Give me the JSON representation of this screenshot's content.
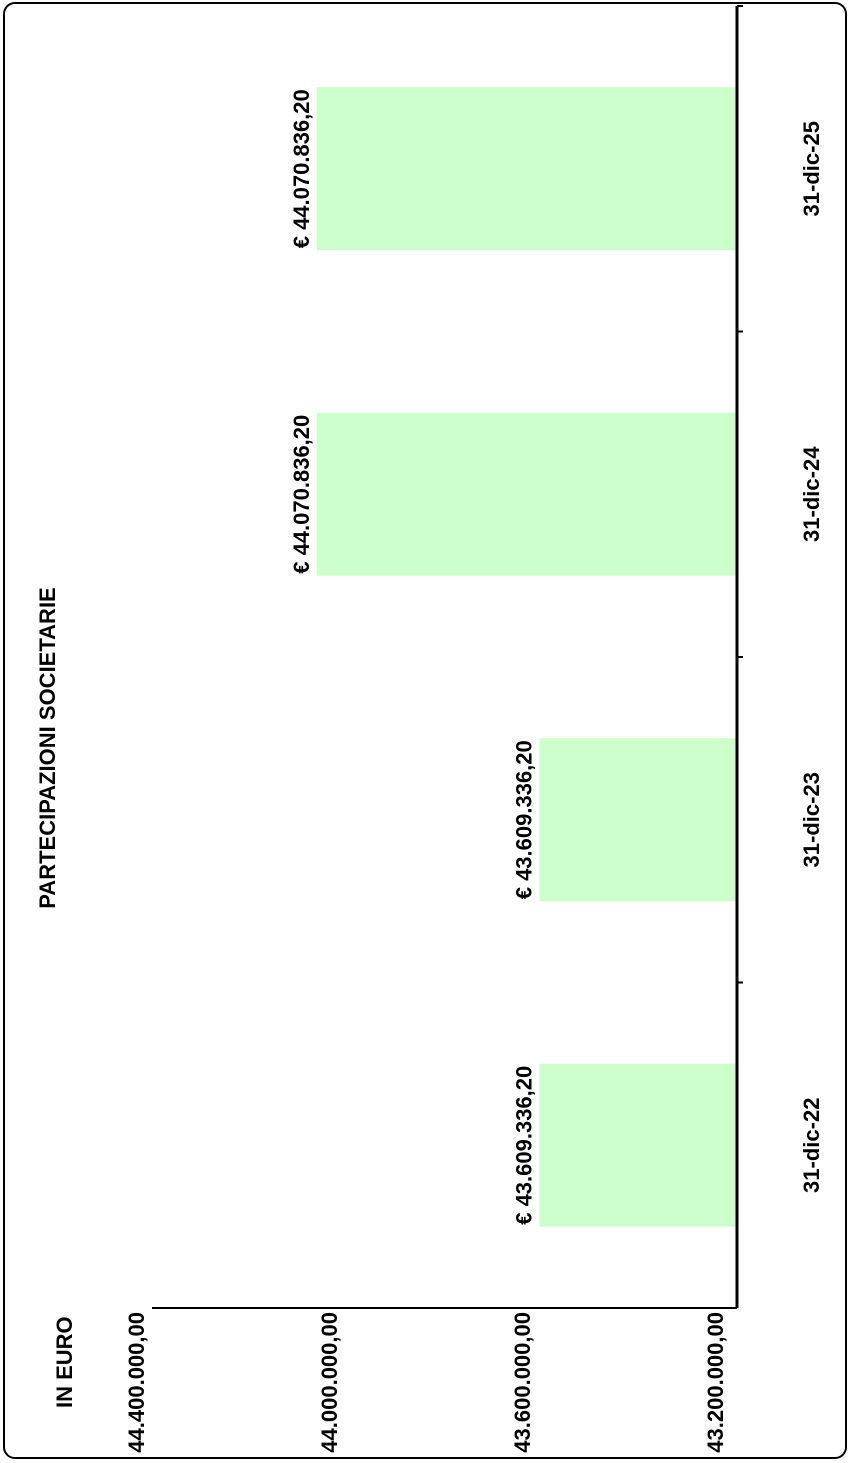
{
  "chart_data": {
    "type": "bar",
    "title": "PARTECIPAZIONI SOCIETARIE",
    "ylabel": "IN EURO",
    "categories": [
      "31-dic-22",
      "31-dic-23",
      "31-dic-24",
      "31-dic-25"
    ],
    "values": [
      43609336.2,
      43609336.2,
      44070836.2,
      44070836.2
    ],
    "value_labels": [
      "€ 43.609.336,20",
      "€ 43.609.336,20",
      "€ 44.070.836,20",
      "€ 44.070.836,20"
    ],
    "ylim": [
      43200000,
      44400000
    ],
    "yticks": [
      43200000,
      43600000,
      44000000,
      44400000
    ],
    "ytick_labels": [
      "43.200.000,00",
      "43.600.000,00",
      "44.000.000,00",
      "44.400.000,00"
    ],
    "orientation": "rotated 90° counter-clockwise",
    "grid": false,
    "colors": {
      "bar": "#ccffcc",
      "axis": "#000000"
    }
  }
}
